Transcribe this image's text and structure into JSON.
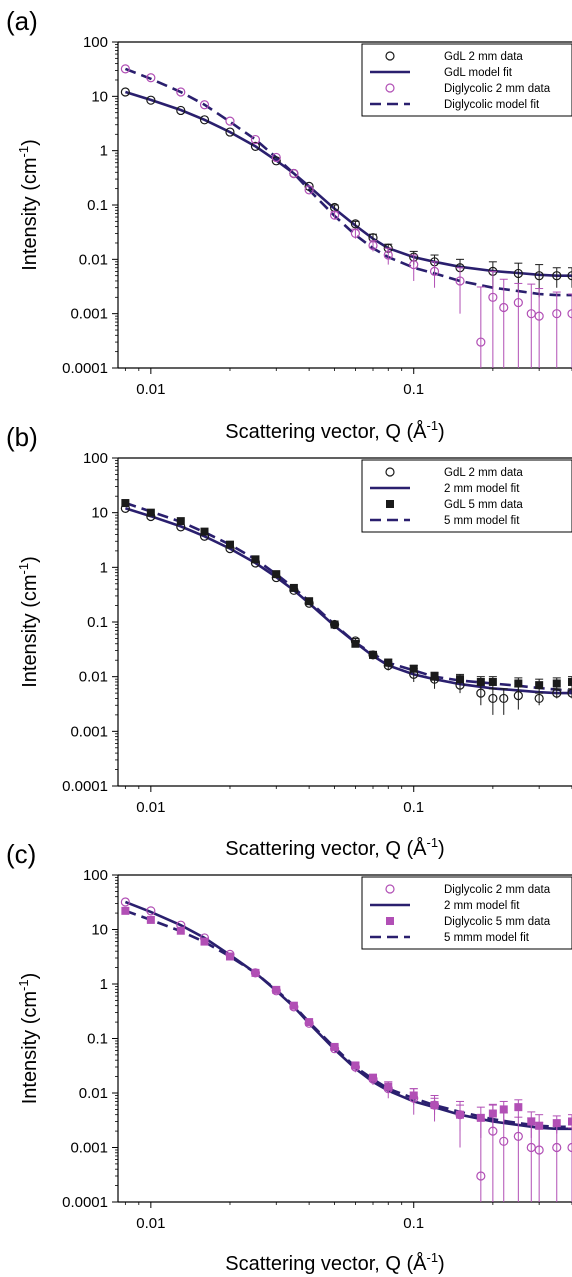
{
  "colors": {
    "gdl": "#1a1a1a",
    "diglycolic": "#b14fb5",
    "fit": "#2a1f6e"
  },
  "chart_data": [
    {
      "panel": "(a)",
      "type": "scatter",
      "xscale": "log",
      "yscale": "log",
      "xlim": [
        0.0075,
        0.4
      ],
      "ylim": [
        0.0001,
        100
      ],
      "xticks": [
        0.01,
        0.1
      ],
      "xtick_labels": [
        "0.01",
        "0.1"
      ],
      "yticks": [
        0.0001,
        0.001,
        0.01,
        0.1,
        1,
        10,
        100
      ],
      "ytick_labels": [
        "0.0001",
        "0.001",
        "0.01",
        "0.1",
        "1",
        "10",
        "100"
      ],
      "xlabel": "Scattering vector, Q (Å",
      "xlabel_sup": "-1",
      "xlabel_end": ")",
      "ylabel": "Intensity (cm",
      "ylabel_sup": "-1",
      "ylabel_end": ")",
      "legend_position": "top-right",
      "series": [
        {
          "name": "GdL 2 mm data",
          "kind": "points",
          "marker": "open-circle",
          "color": "#1a1a1a",
          "x": [
            0.008,
            0.01,
            0.013,
            0.016,
            0.02,
            0.025,
            0.03,
            0.035,
            0.04,
            0.05,
            0.06,
            0.07,
            0.08,
            0.1,
            0.12,
            0.15,
            0.2,
            0.25,
            0.3,
            0.35,
            0.4
          ],
          "y": [
            12,
            8.5,
            5.5,
            3.7,
            2.2,
            1.2,
            0.65,
            0.38,
            0.22,
            0.09,
            0.045,
            0.025,
            0.016,
            0.011,
            0.009,
            0.007,
            0.006,
            0.0055,
            0.005,
            0.005,
            0.005
          ],
          "err": [
            0,
            0,
            0,
            0,
            0,
            0,
            0,
            0,
            0,
            0.01,
            0.005,
            0.004,
            0.003,
            0.003,
            0.003,
            0.003,
            0.003,
            0.003,
            0.003,
            0.002,
            0.002
          ]
        },
        {
          "name": "GdL model fit",
          "kind": "line",
          "dash": "solid",
          "color": "#2a1f6e",
          "x": [
            0.008,
            0.01,
            0.013,
            0.016,
            0.02,
            0.025,
            0.03,
            0.035,
            0.04,
            0.05,
            0.06,
            0.07,
            0.08,
            0.1,
            0.12,
            0.15,
            0.2,
            0.25,
            0.3,
            0.35,
            0.4
          ],
          "y": [
            12,
            8.6,
            5.6,
            3.7,
            2.2,
            1.2,
            0.66,
            0.38,
            0.22,
            0.085,
            0.042,
            0.024,
            0.016,
            0.011,
            0.009,
            0.0073,
            0.0061,
            0.0056,
            0.0052,
            0.005,
            0.005
          ]
        },
        {
          "name": "Diglycolic 2 mm data",
          "kind": "points",
          "marker": "open-circle",
          "color": "#b14fb5",
          "x": [
            0.008,
            0.01,
            0.013,
            0.016,
            0.02,
            0.025,
            0.03,
            0.035,
            0.04,
            0.05,
            0.06,
            0.07,
            0.08,
            0.1,
            0.12,
            0.15,
            0.18,
            0.2,
            0.22,
            0.25,
            0.28,
            0.3,
            0.35,
            0.4
          ],
          "y": [
            32,
            22,
            12,
            7,
            3.5,
            1.6,
            0.75,
            0.38,
            0.19,
            0.065,
            0.03,
            0.018,
            0.012,
            0.008,
            0.006,
            0.004,
            0.0003,
            0.002,
            0.0013,
            0.0016,
            0.001,
            0.0009,
            0.001,
            0.001
          ],
          "err": [
            0,
            0,
            0,
            0,
            0,
            0,
            0,
            0,
            0,
            0.01,
            0.006,
            0.004,
            0.004,
            0.004,
            0.003,
            0.003,
            0.0028,
            0.004,
            0.003,
            0.002,
            0.0025,
            0.002,
            0.0015,
            0.0013
          ]
        },
        {
          "name": "Diglycolic model fit",
          "kind": "line",
          "dash": "dashed",
          "color": "#2a1f6e",
          "x": [
            0.008,
            0.01,
            0.013,
            0.016,
            0.02,
            0.025,
            0.03,
            0.035,
            0.04,
            0.05,
            0.06,
            0.07,
            0.08,
            0.1,
            0.12,
            0.15,
            0.2,
            0.25,
            0.3,
            0.35,
            0.4
          ],
          "y": [
            32,
            21,
            12,
            7,
            3.4,
            1.6,
            0.75,
            0.38,
            0.19,
            0.063,
            0.028,
            0.016,
            0.011,
            0.007,
            0.0055,
            0.004,
            0.003,
            0.0026,
            0.0023,
            0.0022,
            0.0022
          ]
        }
      ]
    },
    {
      "panel": "(b)",
      "type": "scatter",
      "xscale": "log",
      "yscale": "log",
      "xlim": [
        0.0075,
        0.4
      ],
      "ylim": [
        0.0001,
        100
      ],
      "xticks": [
        0.01,
        0.1
      ],
      "xtick_labels": [
        "0.01",
        "0.1"
      ],
      "yticks": [
        0.0001,
        0.001,
        0.01,
        0.1,
        1,
        10,
        100
      ],
      "ytick_labels": [
        "0.0001",
        "0.001",
        "0.01",
        "0.1",
        "1",
        "10",
        "100"
      ],
      "xlabel": "Scattering vector, Q (Å",
      "xlabel_sup": "-1",
      "xlabel_end": ")",
      "ylabel": "Intensity (cm",
      "ylabel_sup": "-1",
      "ylabel_end": ")",
      "legend_position": "top-right",
      "series": [
        {
          "name": "GdL 2 mm data",
          "kind": "points",
          "marker": "open-circle",
          "color": "#1a1a1a",
          "x": [
            0.008,
            0.01,
            0.013,
            0.016,
            0.02,
            0.025,
            0.03,
            0.035,
            0.04,
            0.05,
            0.06,
            0.07,
            0.08,
            0.1,
            0.12,
            0.15,
            0.18,
            0.2,
            0.22,
            0.25,
            0.3,
            0.35,
            0.4
          ],
          "y": [
            12,
            8.5,
            5.5,
            3.7,
            2.2,
            1.2,
            0.65,
            0.38,
            0.22,
            0.09,
            0.045,
            0.025,
            0.016,
            0.011,
            0.009,
            0.007,
            0.005,
            0.004,
            0.004,
            0.0045,
            0.004,
            0.005,
            0.005
          ],
          "err": [
            0,
            0,
            0,
            0,
            0,
            0,
            0,
            0,
            0,
            0.008,
            0.005,
            0.004,
            0.003,
            0.003,
            0.003,
            0.002,
            0.002,
            0.002,
            0.002,
            0.002,
            0.001,
            0.001,
            0.001
          ]
        },
        {
          "name": "2 mm model fit",
          "kind": "line",
          "dash": "solid",
          "color": "#2a1f6e",
          "x": [
            0.008,
            0.01,
            0.013,
            0.016,
            0.02,
            0.025,
            0.03,
            0.035,
            0.04,
            0.05,
            0.06,
            0.07,
            0.08,
            0.1,
            0.12,
            0.15,
            0.2,
            0.25,
            0.3,
            0.35,
            0.4
          ],
          "y": [
            12,
            8.6,
            5.6,
            3.7,
            2.2,
            1.2,
            0.66,
            0.38,
            0.22,
            0.085,
            0.042,
            0.024,
            0.016,
            0.011,
            0.009,
            0.0073,
            0.0061,
            0.0056,
            0.0052,
            0.005,
            0.005
          ]
        },
        {
          "name": "GdL 5 mm data",
          "kind": "points",
          "marker": "filled-square",
          "color": "#1a1a1a",
          "x": [
            0.008,
            0.01,
            0.013,
            0.016,
            0.02,
            0.025,
            0.03,
            0.035,
            0.04,
            0.05,
            0.06,
            0.07,
            0.08,
            0.1,
            0.12,
            0.15,
            0.18,
            0.2,
            0.25,
            0.3,
            0.35,
            0.4
          ],
          "y": [
            15,
            10,
            7,
            4.5,
            2.6,
            1.4,
            0.75,
            0.42,
            0.24,
            0.09,
            0.04,
            0.025,
            0.018,
            0.014,
            0.01,
            0.009,
            0.008,
            0.008,
            0.0075,
            0.007,
            0.0075,
            0.008
          ],
          "err": [
            0,
            0,
            0,
            0,
            0,
            0,
            0,
            0,
            0,
            0.006,
            0.004,
            0.003,
            0.003,
            0.002,
            0.002,
            0.002,
            0.002,
            0.002,
            0.002,
            0.002,
            0.002,
            0.002
          ]
        },
        {
          "name": "5 mm model fit",
          "kind": "line",
          "dash": "dashed",
          "color": "#2a1f6e",
          "x": [
            0.008,
            0.01,
            0.013,
            0.016,
            0.02,
            0.025,
            0.03,
            0.035,
            0.04,
            0.05,
            0.06,
            0.07,
            0.08,
            0.1,
            0.12,
            0.15,
            0.2,
            0.25,
            0.3,
            0.35,
            0.4
          ],
          "y": [
            15,
            10.5,
            6.8,
            4.4,
            2.6,
            1.4,
            0.75,
            0.42,
            0.24,
            0.09,
            0.042,
            0.026,
            0.018,
            0.013,
            0.01,
            0.0085,
            0.0075,
            0.0068,
            0.0062,
            0.0058,
            0.0055
          ]
        }
      ]
    },
    {
      "panel": "(c)",
      "type": "scatter",
      "xscale": "log",
      "yscale": "log",
      "xlim": [
        0.0075,
        0.4
      ],
      "ylim": [
        0.0001,
        100
      ],
      "xticks": [
        0.01,
        0.1
      ],
      "xtick_labels": [
        "0.01",
        "0.1"
      ],
      "yticks": [
        0.0001,
        0.001,
        0.01,
        0.1,
        1,
        10,
        100
      ],
      "ytick_labels": [
        "0.0001",
        "0.001",
        "0.01",
        "0.1",
        "1",
        "10",
        "100"
      ],
      "xlabel": "Scattering vector, Q (Å",
      "xlabel_sup": "-1",
      "xlabel_end": ")",
      "ylabel": "Intensity (cm",
      "ylabel_sup": "-1",
      "ylabel_end": ")",
      "legend_position": "top-right",
      "series": [
        {
          "name": "Diglycolic 2 mm data",
          "kind": "points",
          "marker": "open-circle",
          "color": "#b14fb5",
          "x": [
            0.008,
            0.01,
            0.013,
            0.016,
            0.02,
            0.025,
            0.03,
            0.035,
            0.04,
            0.05,
            0.06,
            0.07,
            0.08,
            0.1,
            0.12,
            0.15,
            0.18,
            0.2,
            0.22,
            0.25,
            0.28,
            0.3,
            0.35,
            0.4
          ],
          "y": [
            32,
            22,
            12,
            7,
            3.5,
            1.6,
            0.75,
            0.38,
            0.19,
            0.065,
            0.03,
            0.018,
            0.012,
            0.008,
            0.006,
            0.004,
            0.0003,
            0.002,
            0.0013,
            0.0016,
            0.001,
            0.0009,
            0.001,
            0.001
          ],
          "err": [
            0,
            0,
            0,
            0,
            0,
            0,
            0,
            0,
            0,
            0.01,
            0.006,
            0.004,
            0.004,
            0.004,
            0.003,
            0.003,
            0.0028,
            0.004,
            0.003,
            0.002,
            0.0025,
            0.002,
            0.0015,
            0.0013
          ]
        },
        {
          "name": "2 mm model fit",
          "kind": "line",
          "dash": "solid",
          "color": "#2a1f6e",
          "x": [
            0.008,
            0.01,
            0.013,
            0.016,
            0.02,
            0.025,
            0.03,
            0.035,
            0.04,
            0.05,
            0.06,
            0.07,
            0.08,
            0.1,
            0.12,
            0.15,
            0.2,
            0.25,
            0.3,
            0.35,
            0.4
          ],
          "y": [
            32,
            21,
            12,
            7,
            3.4,
            1.6,
            0.75,
            0.38,
            0.19,
            0.063,
            0.028,
            0.016,
            0.011,
            0.007,
            0.0055,
            0.004,
            0.003,
            0.0026,
            0.0023,
            0.0022,
            0.0022
          ]
        },
        {
          "name": "Diglycolic 5 mm data",
          "kind": "points",
          "marker": "filled-square",
          "color": "#b14fb5",
          "x": [
            0.008,
            0.01,
            0.013,
            0.016,
            0.02,
            0.025,
            0.03,
            0.035,
            0.04,
            0.05,
            0.06,
            0.07,
            0.08,
            0.1,
            0.12,
            0.15,
            0.18,
            0.2,
            0.22,
            0.25,
            0.28,
            0.3,
            0.35,
            0.4
          ],
          "y": [
            22,
            15,
            9.5,
            6,
            3.2,
            1.6,
            0.78,
            0.4,
            0.2,
            0.07,
            0.032,
            0.019,
            0.013,
            0.009,
            0.006,
            0.004,
            0.0035,
            0.0042,
            0.005,
            0.0055,
            0.003,
            0.0025,
            0.0028,
            0.003
          ],
          "err": [
            0,
            0,
            0,
            0,
            0,
            0,
            0,
            0,
            0,
            0.006,
            0.004,
            0.003,
            0.003,
            0.003,
            0.002,
            0.002,
            0.002,
            0.002,
            0.002,
            0.002,
            0.0015,
            0.0015,
            0.001,
            0.001
          ]
        },
        {
          "name": "5 mmm model fit",
          "kind": "line",
          "dash": "dashed",
          "color": "#2a1f6e",
          "x": [
            0.008,
            0.01,
            0.013,
            0.016,
            0.02,
            0.025,
            0.03,
            0.035,
            0.04,
            0.05,
            0.06,
            0.07,
            0.08,
            0.1,
            0.12,
            0.15,
            0.2,
            0.25,
            0.3,
            0.35,
            0.4
          ],
          "y": [
            22,
            15,
            9.3,
            5.9,
            3.2,
            1.6,
            0.78,
            0.4,
            0.2,
            0.068,
            0.03,
            0.018,
            0.012,
            0.008,
            0.006,
            0.0045,
            0.0033,
            0.0028,
            0.0025,
            0.0024,
            0.0024
          ]
        }
      ]
    }
  ]
}
